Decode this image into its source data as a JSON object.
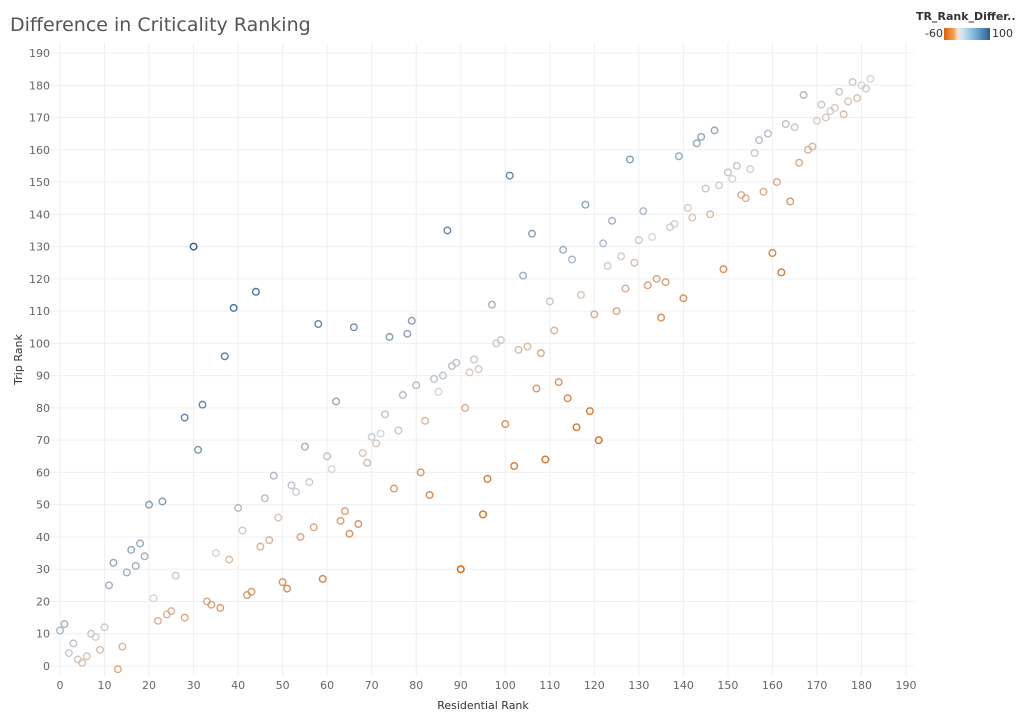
{
  "title": "Difference in Criticality Ranking",
  "legend": {
    "title": "TR_Rank_Differ..",
    "min_label": "-60",
    "max_label": "100",
    "colors": {
      "low": "#d9620c",
      "mid": "#d6d6d6",
      "high": "#2c5c8f"
    }
  },
  "chart_data": {
    "type": "scatter",
    "title": "Difference in Criticality Ranking",
    "xlabel": "Residential Rank",
    "ylabel": "Trip Rank",
    "xlim": [
      0,
      190
    ],
    "ylim": [
      0,
      190
    ],
    "xticks": [
      0,
      10,
      20,
      30,
      40,
      50,
      60,
      70,
      80,
      90,
      100,
      110,
      120,
      130,
      140,
      150,
      160,
      170,
      180,
      190
    ],
    "yticks": [
      0,
      10,
      20,
      30,
      40,
      50,
      60,
      70,
      80,
      90,
      100,
      110,
      120,
      130,
      140,
      150,
      160,
      170,
      180,
      190
    ],
    "grid": true,
    "color_field": "TR_Rank_Difference",
    "color_range": [
      -60,
      100
    ],
    "points": [
      [
        0,
        11
      ],
      [
        1,
        13
      ],
      [
        2,
        4
      ],
      [
        3,
        7
      ],
      [
        4,
        2
      ],
      [
        5,
        1
      ],
      [
        6,
        3
      ],
      [
        7,
        10
      ],
      [
        8,
        9
      ],
      [
        9,
        5
      ],
      [
        10,
        12
      ],
      [
        11,
        25
      ],
      [
        12,
        32
      ],
      [
        13,
        -1
      ],
      [
        14,
        6
      ],
      [
        15,
        29
      ],
      [
        16,
        36
      ],
      [
        17,
        31
      ],
      [
        18,
        38
      ],
      [
        19,
        34
      ],
      [
        20,
        50
      ],
      [
        21,
        21
      ],
      [
        22,
        14
      ],
      [
        23,
        51
      ],
      [
        24,
        16
      ],
      [
        25,
        17
      ],
      [
        26,
        28
      ],
      [
        28,
        77
      ],
      [
        28,
        15
      ],
      [
        30,
        130
      ],
      [
        31,
        67
      ],
      [
        32,
        81
      ],
      [
        33,
        20
      ],
      [
        34,
        19
      ],
      [
        35,
        35
      ],
      [
        36,
        18
      ],
      [
        37,
        96
      ],
      [
        38,
        33
      ],
      [
        39,
        111
      ],
      [
        40,
        49
      ],
      [
        41,
        42
      ],
      [
        42,
        22
      ],
      [
        43,
        23
      ],
      [
        44,
        116
      ],
      [
        45,
        37
      ],
      [
        46,
        52
      ],
      [
        47,
        39
      ],
      [
        48,
        59
      ],
      [
        49,
        46
      ],
      [
        50,
        26
      ],
      [
        51,
        24
      ],
      [
        52,
        56
      ],
      [
        53,
        54
      ],
      [
        54,
        40
      ],
      [
        55,
        68
      ],
      [
        56,
        57
      ],
      [
        57,
        43
      ],
      [
        58,
        106
      ],
      [
        59,
        27
      ],
      [
        60,
        65
      ],
      [
        61,
        61
      ],
      [
        62,
        82
      ],
      [
        63,
        45
      ],
      [
        64,
        48
      ],
      [
        65,
        41
      ],
      [
        66,
        105
      ],
      [
        67,
        44
      ],
      [
        68,
        66
      ],
      [
        69,
        63
      ],
      [
        70,
        71
      ],
      [
        71,
        69
      ],
      [
        72,
        72
      ],
      [
        73,
        78
      ],
      [
        74,
        102
      ],
      [
        75,
        55
      ],
      [
        76,
        73
      ],
      [
        77,
        84
      ],
      [
        78,
        103
      ],
      [
        79,
        107
      ],
      [
        80,
        87
      ],
      [
        81,
        60
      ],
      [
        82,
        76
      ],
      [
        83,
        53
      ],
      [
        84,
        89
      ],
      [
        85,
        85
      ],
      [
        86,
        90
      ],
      [
        87,
        135
      ],
      [
        88,
        93
      ],
      [
        89,
        94
      ],
      [
        90,
        30
      ],
      [
        91,
        80
      ],
      [
        92,
        91
      ],
      [
        93,
        95
      ],
      [
        94,
        92
      ],
      [
        95,
        47
      ],
      [
        96,
        58
      ],
      [
        97,
        112
      ],
      [
        98,
        100
      ],
      [
        99,
        101
      ],
      [
        100,
        75
      ],
      [
        101,
        152
      ],
      [
        102,
        62
      ],
      [
        103,
        98
      ],
      [
        104,
        121
      ],
      [
        105,
        99
      ],
      [
        106,
        134
      ],
      [
        107,
        86
      ],
      [
        108,
        97
      ],
      [
        109,
        64
      ],
      [
        110,
        113
      ],
      [
        111,
        104
      ],
      [
        112,
        88
      ],
      [
        113,
        129
      ],
      [
        114,
        83
      ],
      [
        115,
        126
      ],
      [
        116,
        74
      ],
      [
        117,
        115
      ],
      [
        118,
        143
      ],
      [
        119,
        79
      ],
      [
        120,
        109
      ],
      [
        121,
        70
      ],
      [
        122,
        131
      ],
      [
        123,
        124
      ],
      [
        124,
        138
      ],
      [
        125,
        110
      ],
      [
        126,
        127
      ],
      [
        127,
        117
      ],
      [
        128,
        157
      ],
      [
        129,
        125
      ],
      [
        130,
        132
      ],
      [
        131,
        141
      ],
      [
        132,
        118
      ],
      [
        133,
        133
      ],
      [
        134,
        120
      ],
      [
        135,
        108
      ],
      [
        136,
        119
      ],
      [
        137,
        136
      ],
      [
        138,
        137
      ],
      [
        139,
        158
      ],
      [
        140,
        114
      ],
      [
        141,
        142
      ],
      [
        142,
        139
      ],
      [
        143,
        162
      ],
      [
        144,
        164
      ],
      [
        145,
        148
      ],
      [
        146,
        140
      ],
      [
        147,
        166
      ],
      [
        148,
        149
      ],
      [
        149,
        123
      ],
      [
        150,
        153
      ],
      [
        151,
        151
      ],
      [
        152,
        155
      ],
      [
        153,
        146
      ],
      [
        154,
        145
      ],
      [
        155,
        154
      ],
      [
        156,
        159
      ],
      [
        157,
        163
      ],
      [
        158,
        147
      ],
      [
        159,
        165
      ],
      [
        160,
        128
      ],
      [
        161,
        150
      ],
      [
        162,
        122
      ],
      [
        163,
        168
      ],
      [
        164,
        144
      ],
      [
        165,
        167
      ],
      [
        166,
        156
      ],
      [
        167,
        177
      ],
      [
        168,
        160
      ],
      [
        169,
        161
      ],
      [
        170,
        169
      ],
      [
        171,
        174
      ],
      [
        172,
        170
      ],
      [
        173,
        172
      ],
      [
        174,
        173
      ],
      [
        175,
        178
      ],
      [
        176,
        171
      ],
      [
        177,
        175
      ],
      [
        178,
        181
      ],
      [
        179,
        176
      ],
      [
        180,
        180
      ],
      [
        181,
        179
      ],
      [
        182,
        182
      ]
    ]
  }
}
